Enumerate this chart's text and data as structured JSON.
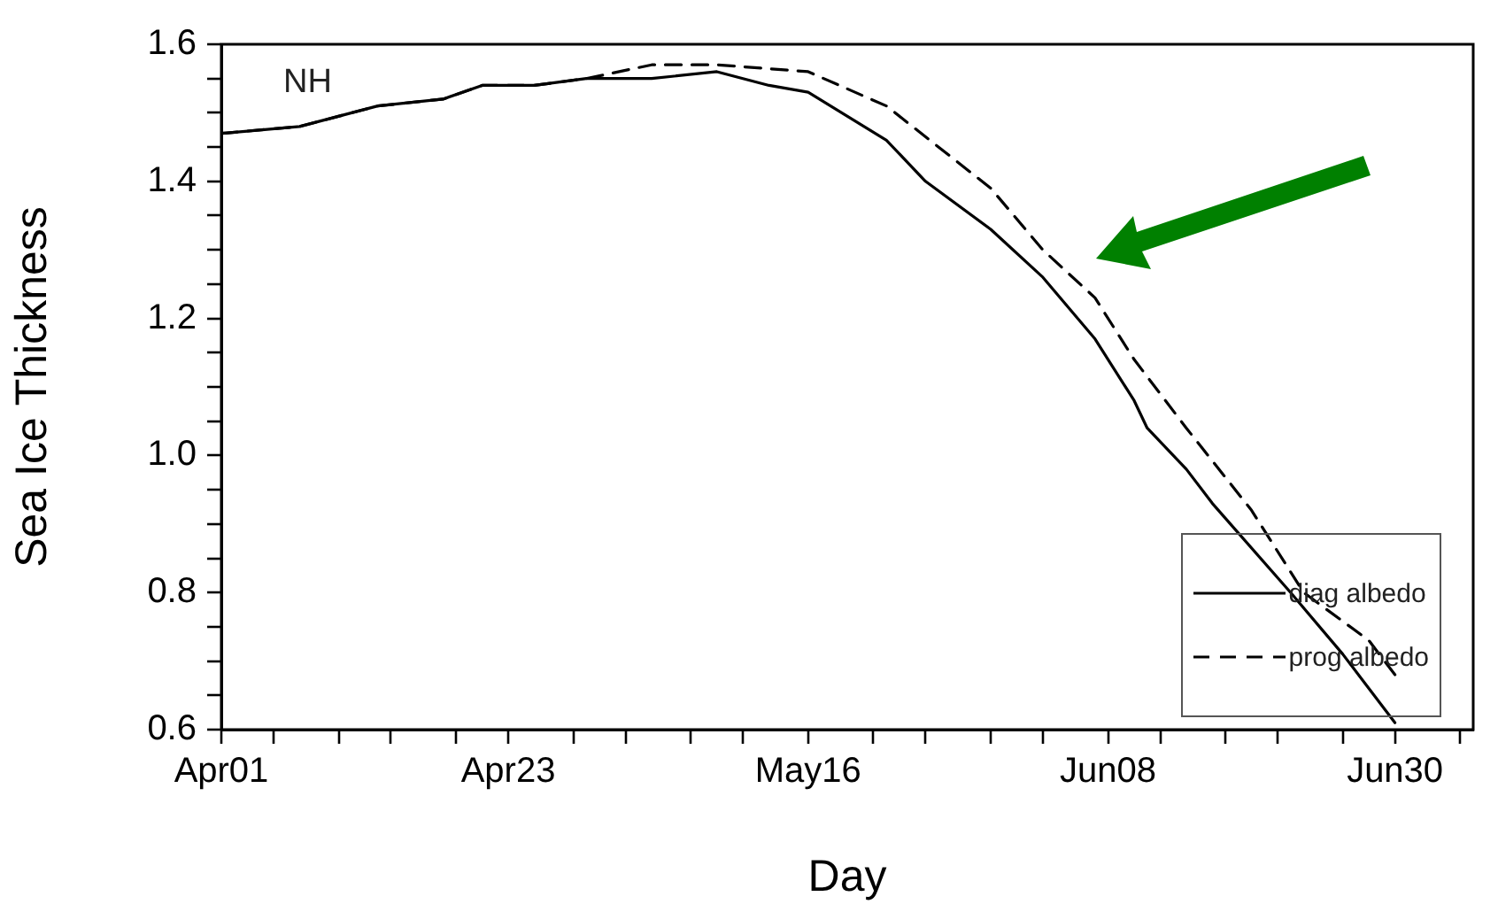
{
  "chart_data": {
    "type": "line",
    "xlabel": "Day",
    "ylabel": "Sea Ice Thickness",
    "annotations": [
      "NH"
    ],
    "xlim": [
      "--04-01",
      "--07-06"
    ],
    "xticks": [
      {
        "value": "--04-01",
        "label": "Apr01"
      },
      {
        "value": "--04-05",
        "label": null
      },
      {
        "value": "--04-10",
        "label": null
      },
      {
        "value": "--04-14",
        "label": null
      },
      {
        "value": "--04-19",
        "label": null
      },
      {
        "value": "--04-23",
        "label": "Apr23"
      },
      {
        "value": "--04-28",
        "label": null
      },
      {
        "value": "--05-02",
        "label": null
      },
      {
        "value": "--05-07",
        "label": null
      },
      {
        "value": "--05-11",
        "label": null
      },
      {
        "value": "--05-16",
        "label": "May16"
      },
      {
        "value": "--05-21",
        "label": null
      },
      {
        "value": "--05-25",
        "label": null
      },
      {
        "value": "--05-30",
        "label": null
      },
      {
        "value": "--06-03",
        "label": null
      },
      {
        "value": "--06-08",
        "label": "Jun08"
      },
      {
        "value": "--06-12",
        "label": null
      },
      {
        "value": "--06-17",
        "label": null
      },
      {
        "value": "--06-21",
        "label": null
      },
      {
        "value": "--06-26",
        "label": null
      },
      {
        "value": "--06-30",
        "label": "Jun30"
      },
      {
        "value": "--07-05",
        "label": null
      }
    ],
    "ylim": [
      0.6,
      1.6
    ],
    "yticks": [
      0.6,
      {
        "value": 0.65,
        "label": null
      },
      {
        "value": 0.7,
        "label": null
      },
      {
        "value": 0.75,
        "label": null
      },
      0.8,
      {
        "value": 0.85,
        "label": null
      },
      {
        "value": 0.9,
        "label": null
      },
      {
        "value": 0.95,
        "label": null
      },
      {
        "value": 1,
        "label": "1.0"
      },
      {
        "value": 1.05,
        "label": null
      },
      {
        "value": 1.1,
        "label": null
      },
      {
        "value": 1.15,
        "label": null
      },
      1.2,
      {
        "value": 1.25,
        "label": null
      },
      {
        "value": 1.3,
        "label": null
      },
      {
        "value": 1.35,
        "label": null
      },
      1.4,
      {
        "value": 1.45,
        "label": null
      },
      {
        "value": 1.5,
        "label": null
      },
      {
        "value": 1.55,
        "label": null
      },
      1.6
    ],
    "legend": "bottom right",
    "marker": "none",
    "series": [
      {
        "name": "diag albedo",
        "color": "#000000",
        "line_style": "solid",
        "x": [
          "--04-01",
          "--04-07",
          "--04-13",
          "--04-18",
          "--04-21",
          "--04-25",
          "--04-29",
          "--05-04",
          "--05-09",
          "--05-13",
          "--05-16",
          "--05-22",
          "--05-25",
          "--05-30",
          "--06-03",
          "--06-07",
          "--06-10",
          "--06-11",
          "--06-14",
          "--06-16",
          "--06-22",
          "--06-26",
          "--06-30"
        ],
        "values": [
          1.47,
          1.48,
          1.51,
          1.52,
          1.54,
          1.54,
          1.55,
          1.55,
          1.56,
          1.54,
          1.53,
          1.46,
          1.4,
          1.33,
          1.26,
          1.17,
          1.08,
          1.04,
          0.98,
          0.93,
          0.8,
          0.71,
          0.61
        ]
      },
      {
        "name": "prog albedo",
        "color": "#000000",
        "line_style": "dashed",
        "x": [
          "--04-01",
          "--04-07",
          "--04-13",
          "--04-18",
          "--04-21",
          "--04-25",
          "--04-29",
          "--05-04",
          "--05-09",
          "--05-16",
          "--05-22",
          "--05-24",
          "--05-30",
          "--06-03",
          "--06-07",
          "--06-10",
          "--06-14",
          "--06-19",
          "--06-23",
          "--06-28",
          "--06-30"
        ],
        "values": [
          1.47,
          1.48,
          1.51,
          1.52,
          1.54,
          1.54,
          1.55,
          1.57,
          1.57,
          1.56,
          1.51,
          1.48,
          1.39,
          1.3,
          1.23,
          1.14,
          1.04,
          0.92,
          0.8,
          0.73,
          0.68
        ]
      }
    ]
  }
}
